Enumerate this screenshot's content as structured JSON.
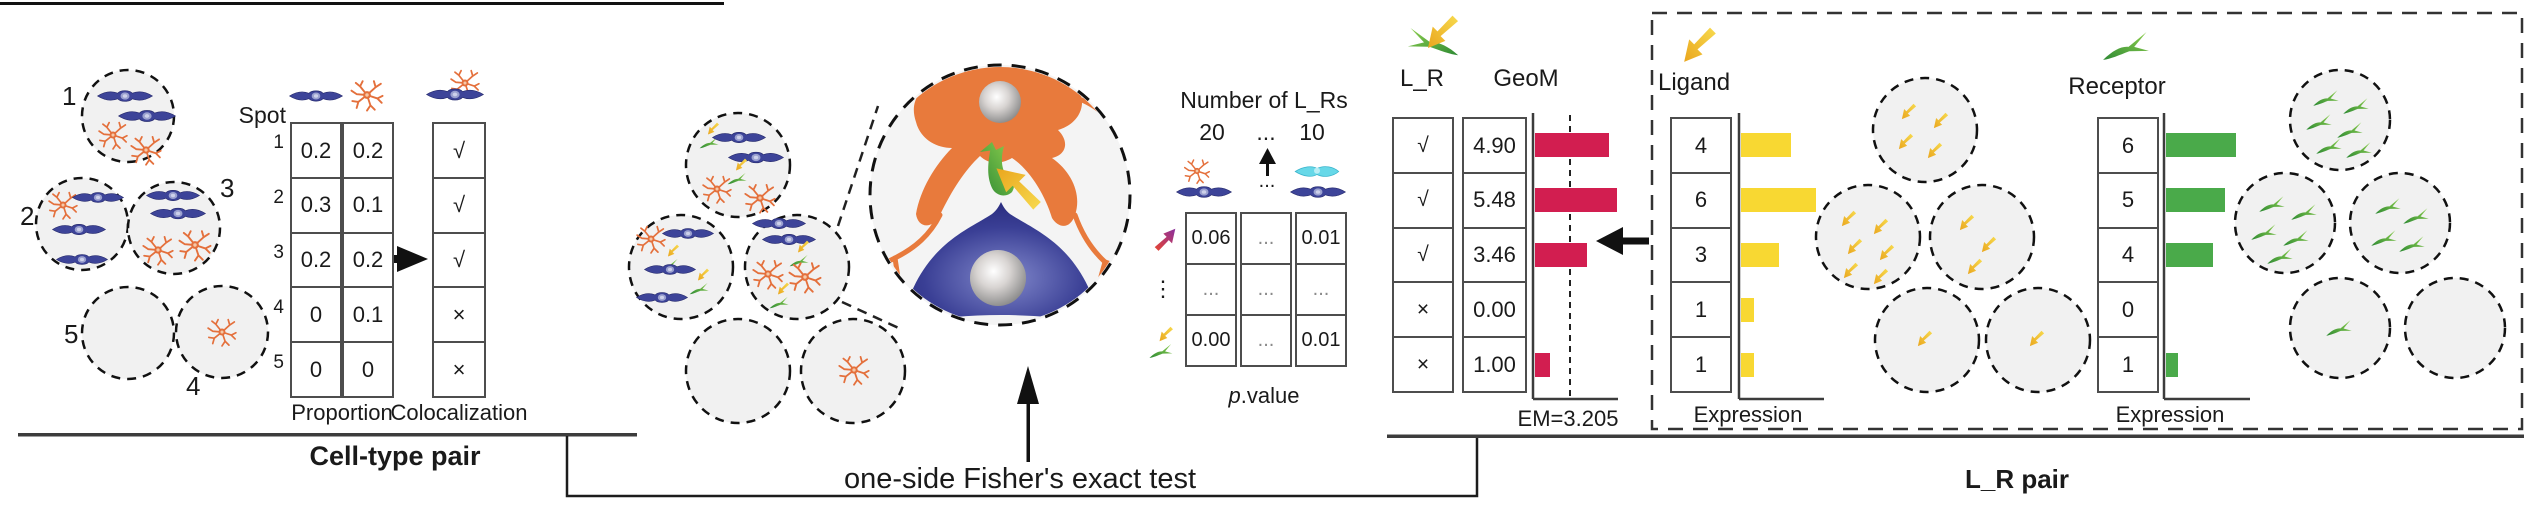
{
  "colors": {
    "geom_bar": "#d21e50",
    "ligand_bar": "#f8d832",
    "receptor_bar": "#4aaa4a",
    "neuron_cell": "#3d4499",
    "astrocyte_cell": "#e4703c",
    "ligand_arrow": "#f2c230",
    "receptor_arrow": "#3fa040"
  },
  "icons": {
    "neuron": "blue-neuron-cell",
    "astrocyte": "orange-astrocyte-cell",
    "ligand": "yellow-ligand-arrow",
    "receptor": "green-receptor-arrow",
    "lr_pair": "ligand-receptor-pair",
    "cell_pair": "neuron-astrocyte-pair",
    "cyan_cell": "cyan-cell"
  },
  "cell_type_pair": {
    "section_label": "Cell-type pair",
    "spot_labels": [
      "1",
      "2",
      "3",
      "5",
      "4"
    ],
    "table": {
      "corner_label": "Spot",
      "row_labels": [
        "1",
        "2",
        "3",
        "4",
        "5"
      ],
      "proportion_label": "Proportion",
      "proportion_rows": [
        [
          "0.2",
          "0.2"
        ],
        [
          "0.3",
          "0.1"
        ],
        [
          "0.2",
          "0.2"
        ],
        [
          "0",
          "0.1"
        ],
        [
          "0",
          "0"
        ]
      ],
      "colocalization_label": "Colocalization",
      "colocalization_rows": [
        "√",
        "√",
        "√",
        "×",
        "×"
      ]
    }
  },
  "fisher": {
    "label": "one-side Fisher's exact test",
    "pvalue_table": {
      "title": "Number of L_Rs",
      "tick_left": "20",
      "tick_mid": "...",
      "tick_right": "10",
      "dots_below_arrow": "...",
      "row_dots": "⋮",
      "rows": [
        [
          "0.06",
          "...",
          "0.01"
        ],
        [
          "...",
          "...",
          "..."
        ],
        [
          "0.00",
          "...",
          "0.01"
        ]
      ],
      "caption_p": "p",
      "caption_value": ".value"
    }
  },
  "lr_score": {
    "lr_header": "L_R",
    "geom_header": "GeoM",
    "lr_flags": [
      "√",
      "√",
      "√",
      "×",
      "×"
    ],
    "geom_values": [
      "4.90",
      "5.48",
      "3.46",
      "0.00",
      "1.00"
    ],
    "em_label": "EM=3.205"
  },
  "lr_pair": {
    "section_label": "L_R pair",
    "ligand": {
      "header": "Ligand",
      "values": [
        "4",
        "6",
        "3",
        "1",
        "1"
      ],
      "expression_label": "Expression"
    },
    "receptor": {
      "header": "Receptor",
      "values": [
        "6",
        "5",
        "4",
        "0",
        "1"
      ],
      "expression_label": "Expression"
    }
  }
}
